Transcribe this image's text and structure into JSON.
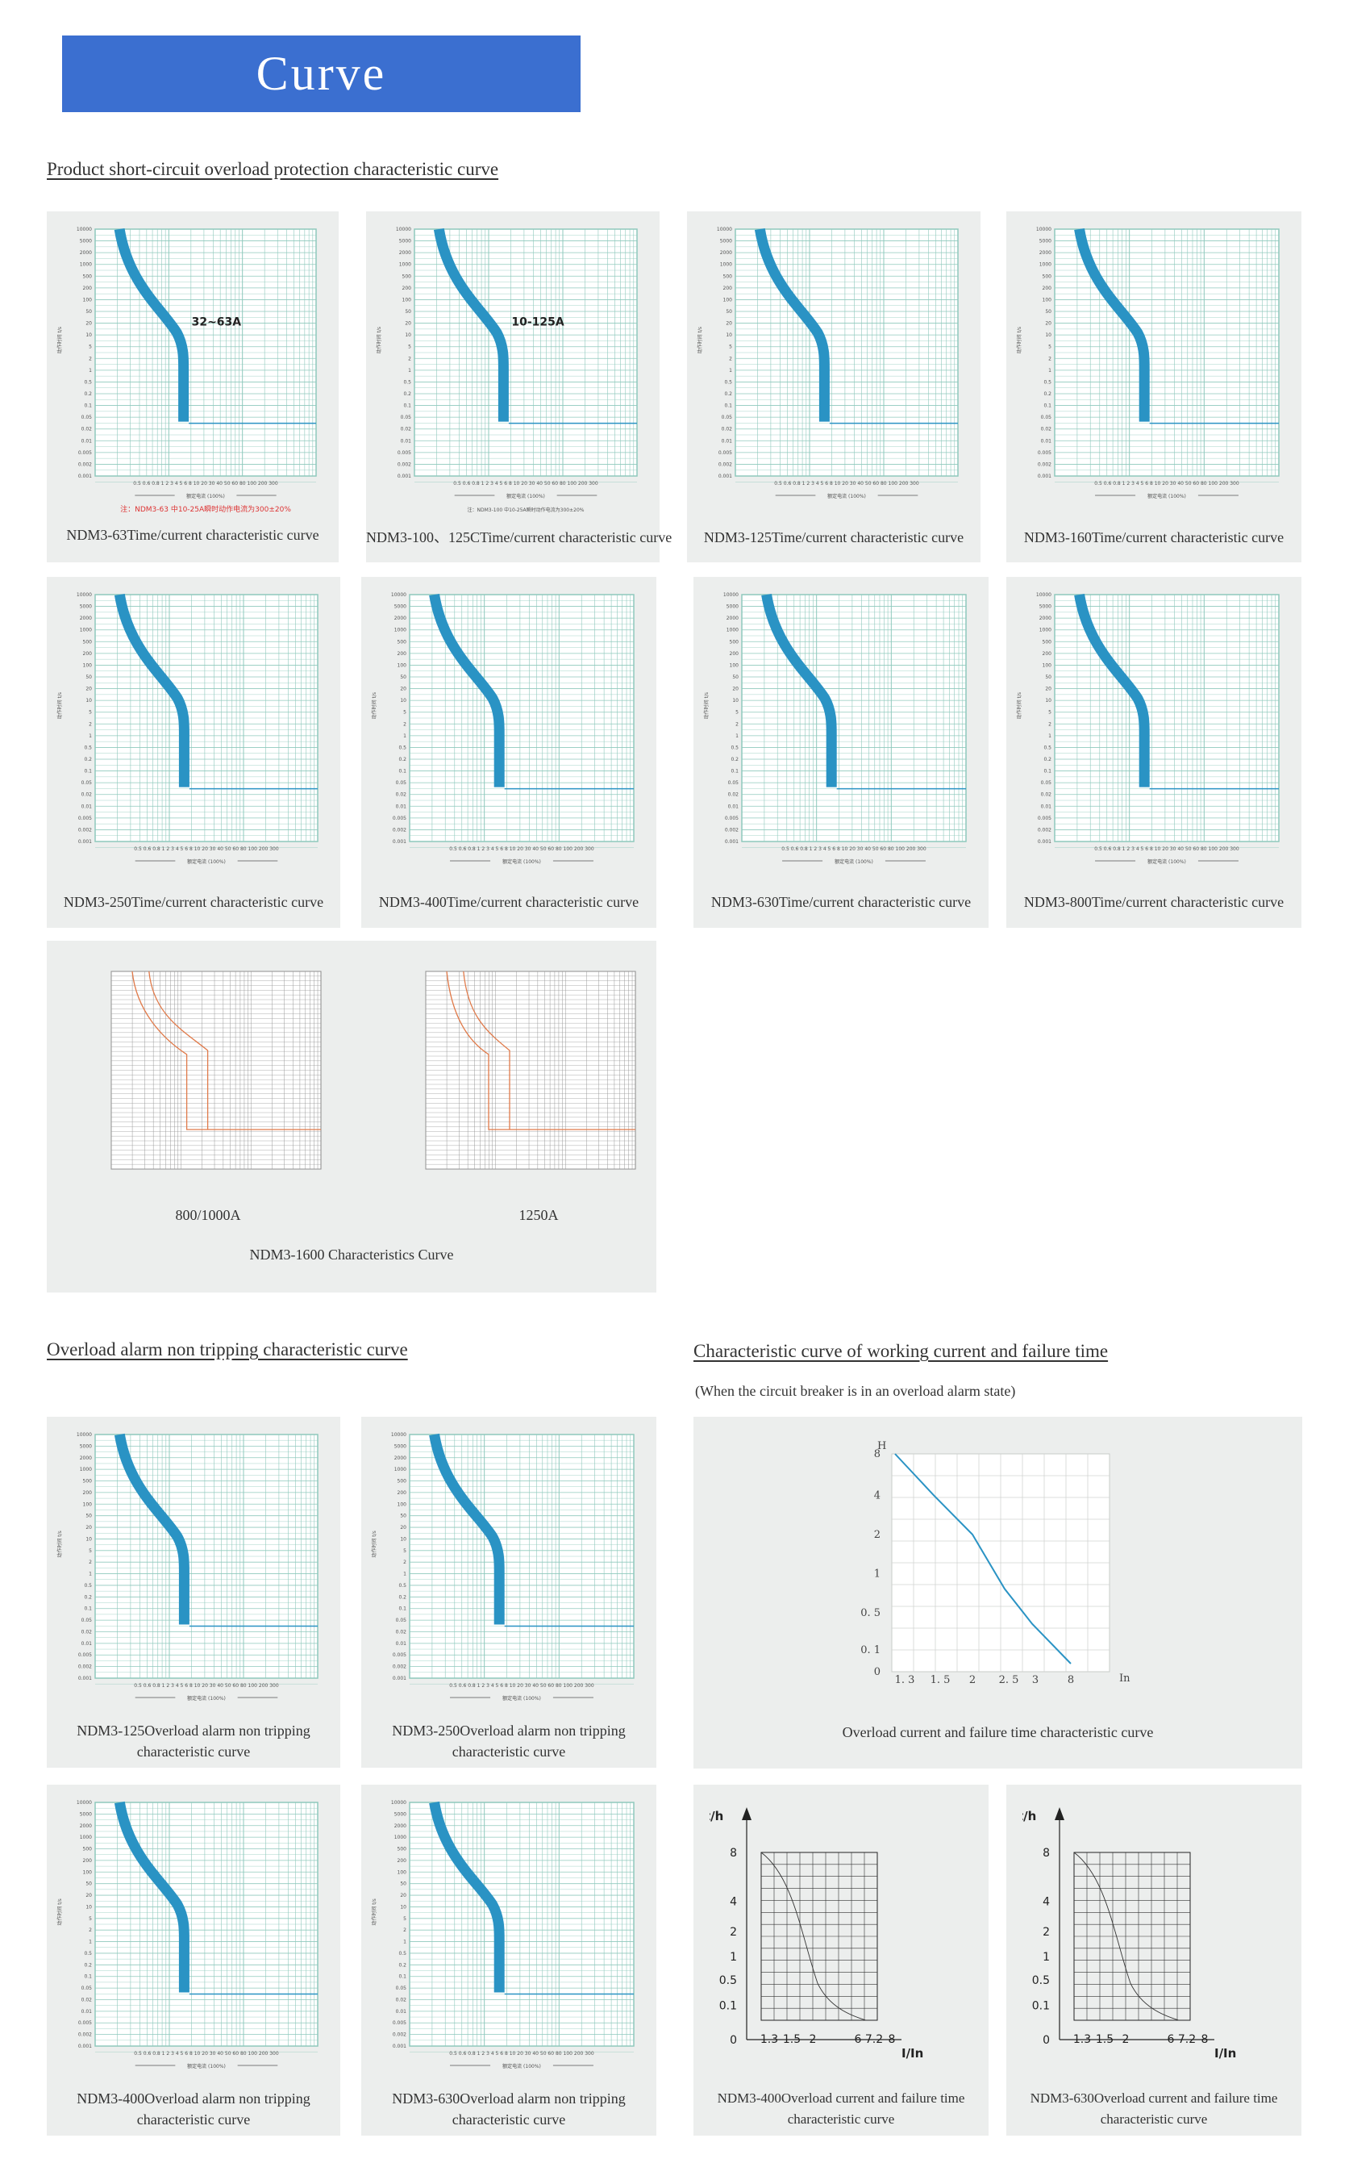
{
  "banner": {
    "title": "Curve"
  },
  "section1": {
    "heading": "Product short-circuit overload protection characteristic curve"
  },
  "curve_common": {
    "y_ticks": [
      "10000",
      "5000",
      "2000",
      "1000",
      "500",
      "200",
      "100",
      "50",
      "20",
      "10",
      "5",
      "2",
      "1",
      "0.5",
      "0.2",
      "0.1",
      "0.05",
      "0.02",
      "0.01",
      "0.005",
      "0.002",
      "0.001"
    ],
    "y_axis_label": "动作时间 t/s",
    "x_ticks": "0.5 0.6 0.8 1   2  3 4 5 6 8 10    20  30 40 50 60 80 100   200 300",
    "x_axis_label": "额定电流 (100%)"
  },
  "protection": [
    {
      "caption": "NDM3-63Time/current characteristic curve",
      "band_label": "32~63A",
      "note": "注：NDM3-63 中10-25A瞬时动作电流为300±20%"
    },
    {
      "caption": "NDM3-100、125CTime/current characteristic curve",
      "band_label": "10-125A",
      "note": "注：NDM3-100 中10-25A瞬时动作电流为300±20%"
    },
    {
      "caption": "NDM3-125Time/current characteristic curve"
    },
    {
      "caption": "NDM3-160Time/current characteristic curve"
    },
    {
      "caption": "NDM3-250Time/current characteristic curve"
    },
    {
      "caption": "NDM3-400Time/current characteristic curve"
    },
    {
      "caption": "NDM3-630Time/current characteristic curve"
    },
    {
      "caption": "NDM3-800Time/current characteristic curve"
    }
  ],
  "ndm1600": {
    "left_label": "800/1000A",
    "right_label": "1250A",
    "caption": "NDM3-1600 Characteristics Curve"
  },
  "section2": {
    "heading": "Overload alarm non tripping characteristic curve"
  },
  "section3": {
    "heading": "Characteristic curve of working current and failure time",
    "note": "(When the circuit breaker is in an overload alarm state)"
  },
  "alarm": [
    {
      "caption": "NDM3-125Overload alarm non tripping characteristic curve"
    },
    {
      "caption": "NDM3-250Overload alarm non tripping characteristic curve"
    },
    {
      "caption": "NDM3-400Overload alarm non tripping characteristic curve"
    },
    {
      "caption": "NDM3-630Overload alarm non tripping characteristic curve"
    }
  ],
  "failure_big": {
    "caption": "Overload current and failure time characteristic curve",
    "y_title": "H",
    "x_title": "In",
    "y_ticks": [
      "8",
      "4",
      "2",
      "1",
      "0. 5",
      "0. 1",
      "0"
    ],
    "x_ticks": [
      "1. 3",
      "1. 5",
      "2",
      "2. 5",
      "3",
      "8"
    ]
  },
  "failure_small": [
    {
      "caption": "NDM3-400Overload current and failure time characteristic curve"
    },
    {
      "caption": "NDM3-630Overload current and failure time characteristic curve"
    }
  ],
  "failure_small_axes": {
    "y_title": "t/h",
    "x_title": "I/In",
    "y_ticks": [
      "8",
      "4",
      "2",
      "1",
      "0.5",
      "0.1",
      "0"
    ],
    "x_ticks": [
      "1.3",
      "1.5",
      "2",
      "6",
      "7.2",
      "8"
    ]
  },
  "colors": {
    "banner": "#3b6fd0",
    "curve": "#2a93c4",
    "grid": "#8fc9bd",
    "card": "#eceeed",
    "orange": "#e07a4a"
  }
}
